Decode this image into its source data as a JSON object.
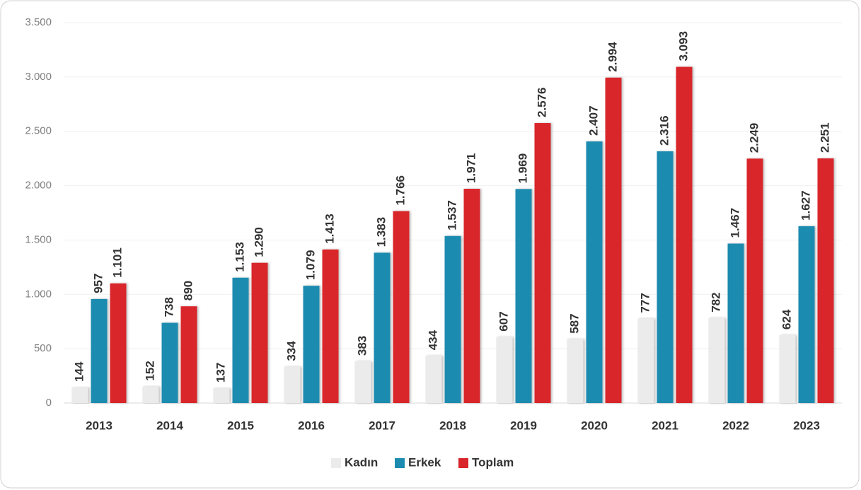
{
  "chart_data": {
    "type": "bar",
    "categories": [
      "2013",
      "2014",
      "2015",
      "2016",
      "2017",
      "2018",
      "2019",
      "2020",
      "2021",
      "2022",
      "2023"
    ],
    "series": [
      {
        "name": "Kadın",
        "color": "#ebebeb",
        "values": [
          144,
          152,
          137,
          334,
          383,
          434,
          607,
          587,
          777,
          782,
          624
        ],
        "value_labels": [
          "144",
          "152",
          "137",
          "334",
          "383",
          "434",
          "607",
          "587",
          "777",
          "782",
          "624"
        ]
      },
      {
        "name": "Erkek",
        "color": "#1b8bb0",
        "values": [
          957,
          738,
          1153,
          1079,
          1383,
          1537,
          1969,
          2407,
          2316,
          1467,
          1627
        ],
        "value_labels": [
          "957",
          "738",
          "1.153",
          "1.079",
          "1.383",
          "1.537",
          "1.969",
          "2.407",
          "2.316",
          "1.467",
          "1.627"
        ]
      },
      {
        "name": "Toplam",
        "color": "#d9252a",
        "values": [
          1101,
          890,
          1290,
          1413,
          1766,
          1971,
          2576,
          2994,
          3093,
          2249,
          2251
        ],
        "value_labels": [
          "1.101",
          "890",
          "1.290",
          "1.413",
          "1.766",
          "1.971",
          "2.576",
          "2.994",
          "3.093",
          "2.249",
          "2.251"
        ]
      }
    ],
    "ylim": [
      0,
      3500
    ],
    "yticks": [
      0,
      500,
      {
        "value": 1000,
        "label": "1.000"
      },
      {
        "value": 1500,
        "label": "1.500"
      },
      {
        "value": 2000,
        "label": "2.000"
      },
      {
        "value": 2500,
        "label": "2.500"
      },
      {
        "value": 3000,
        "label": "3.000"
      },
      {
        "value": 3500,
        "label": "3.500"
      }
    ],
    "grid": true,
    "legend": "bottom"
  }
}
